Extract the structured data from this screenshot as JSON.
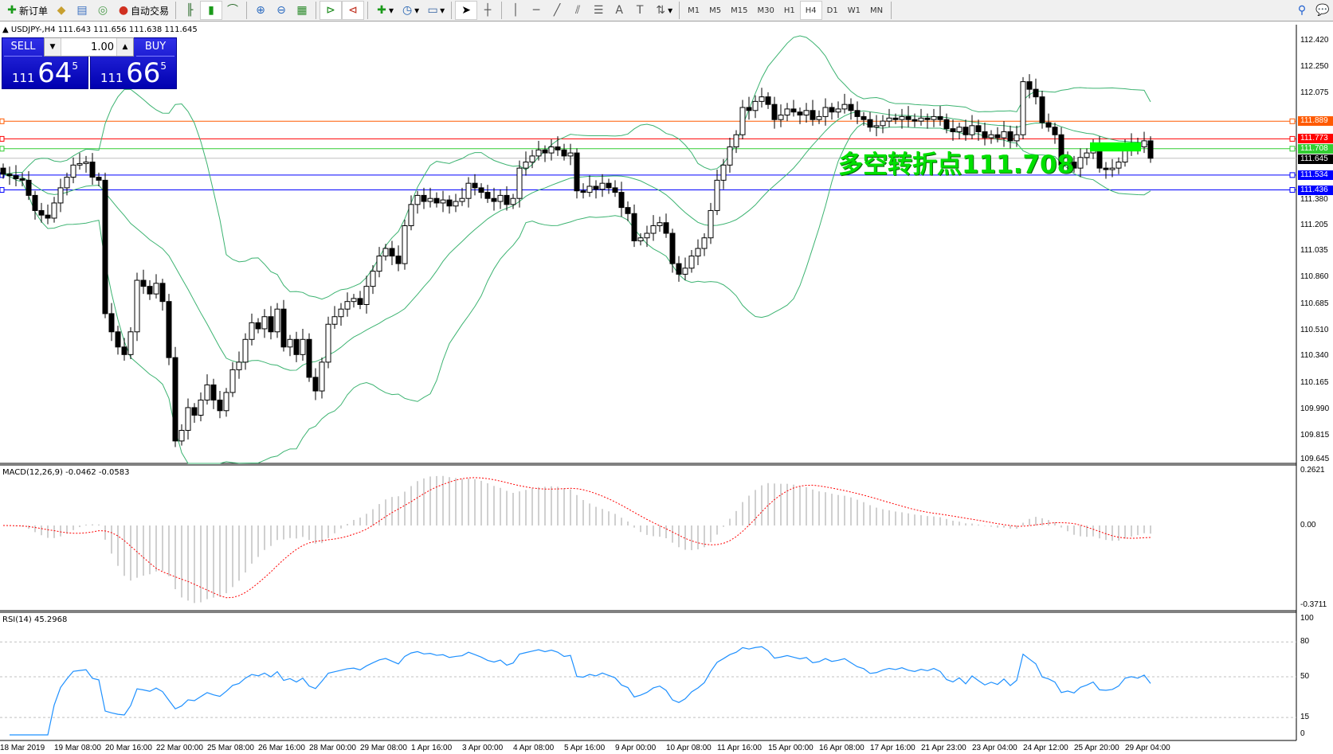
{
  "toolbar": {
    "new_order": "新订单",
    "auto_trading": "自动交易",
    "icons": [
      "new-order-icon",
      "metaeditor-icon",
      "navigator-icon",
      "signal-icon",
      "auto-trading-icon",
      "bar-chart-icon",
      "candlestick-icon",
      "line-chart-icon",
      "zoom-in-icon",
      "zoom-out-icon",
      "tile-windows-icon",
      "autoscroll-icon",
      "chart-shift-icon",
      "indicators-icon",
      "periods-icon",
      "templates-icon",
      "cursor-icon",
      "crosshair-icon",
      "vertical-line-icon",
      "horizontal-line-icon",
      "trendline-icon",
      "equidistant-channel-icon",
      "fibonacci-icon",
      "text-icon",
      "text-label-icon",
      "arrows-icon"
    ],
    "timeframes": [
      "M1",
      "M5",
      "M15",
      "M30",
      "H1",
      "H4",
      "D1",
      "W1",
      "MN"
    ],
    "active_timeframe": "H4"
  },
  "chart_header": "USDJPY-,H4  111.643 111.656 111.638 111.645",
  "trade_panel": {
    "sell_label": "SELL",
    "buy_label": "BUY",
    "lot": "1.00",
    "sell_price": {
      "big": "111",
      "main": "64",
      "sup": "5"
    },
    "buy_price": {
      "big": "111",
      "main": "66",
      "sup": "5"
    }
  },
  "price_levels": [
    {
      "value": "111.889",
      "color": "#ff5a00"
    },
    {
      "value": "111.773",
      "color": "#ff0000"
    },
    {
      "value": "111.708",
      "color": "#32cd32"
    },
    {
      "value": "111.645",
      "color": "#000000",
      "line": "#c0c0c0"
    },
    {
      "value": "111.534",
      "color": "#0000ff"
    },
    {
      "value": "111.436",
      "color": "#0000ff"
    }
  ],
  "annotation": "多空转折点111.708",
  "price_ticks": [
    "112.420",
    "112.250",
    "112.075",
    "111.380",
    "111.205",
    "111.035",
    "110.860",
    "110.685",
    "110.510",
    "110.340",
    "110.165",
    "109.990",
    "109.815",
    "109.645"
  ],
  "macd": {
    "label": "MACD(12,26,9) -0.0462 -0.0583",
    "ticks": [
      "0.2621",
      "0.00",
      "-0.3711"
    ]
  },
  "rsi": {
    "label": "RSI(14) 45.2968",
    "ticks": [
      "100",
      "80",
      "50",
      "15",
      "0"
    ]
  },
  "time_labels": [
    "18 Mar 2019",
    "19 Mar 08:00",
    "20 Mar 16:00",
    "22 Mar 00:00",
    "25 Mar 08:00",
    "26 Mar 16:00",
    "28 Mar 00:00",
    "29 Mar 08:00",
    "1 Apr 16:00",
    "3 Apr 00:00",
    "4 Apr 08:00",
    "5 Apr 16:00",
    "9 Apr 00:00",
    "10 Apr 08:00",
    "11 Apr 16:00",
    "15 Apr 00:00",
    "16 Apr 08:00",
    "17 Apr 16:00",
    "21 Apr 23:00",
    "23 Apr 04:00",
    "24 Apr 12:00",
    "25 Apr 20:00",
    "29 Apr 04:00"
  ],
  "chart_data": {
    "type": "candlestick",
    "symbol": "USDJPY-",
    "timeframe": "H4",
    "ylim": [
      109.645,
      112.42
    ],
    "indicators": [
      "Bollinger Bands",
      "MACD(12,26,9)",
      "RSI(14)"
    ],
    "colors": {
      "bollinger": "#3cb371",
      "macd_hist": "#c0c0c0",
      "macd_signal": "#ff0000",
      "rsi": "#1e90ff"
    },
    "close": [
      111.54,
      111.53,
      111.51,
      111.5,
      111.4,
      111.3,
      111.27,
      111.25,
      111.35,
      111.45,
      111.52,
      111.6,
      111.61,
      111.62,
      111.52,
      111.5,
      110.62,
      110.5,
      110.4,
      110.35,
      110.5,
      110.84,
      110.8,
      110.75,
      110.82,
      110.7,
      110.33,
      109.78,
      109.85,
      110.0,
      109.95,
      110.05,
      110.15,
      110.05,
      109.98,
      110.1,
      110.25,
      110.3,
      110.45,
      110.56,
      110.52,
      110.6,
      110.5,
      110.65,
      110.4,
      110.45,
      110.35,
      110.45,
      110.2,
      110.11,
      110.3,
      110.55,
      110.6,
      110.65,
      110.7,
      110.72,
      110.68,
      110.8,
      110.9,
      111.0,
      111.05,
      111.0,
      110.95,
      111.2,
      111.34,
      111.4,
      111.36,
      111.38,
      111.35,
      111.37,
      111.33,
      111.36,
      111.38,
      111.48,
      111.45,
      111.42,
      111.38,
      111.36,
      111.4,
      111.34,
      111.38,
      111.58,
      111.62,
      111.66,
      111.7,
      111.68,
      111.72,
      111.7,
      111.66,
      111.68,
      111.43,
      111.42,
      111.46,
      111.44,
      111.48,
      111.45,
      111.42,
      111.32,
      111.28,
      111.1,
      111.12,
      111.15,
      111.2,
      111.22,
      111.15,
      110.95,
      110.88,
      110.92,
      111.0,
      111.05,
      111.12,
      111.3,
      111.5,
      111.6,
      111.72,
      111.8,
      111.98,
      111.96,
      112.02,
      112.05,
      112.0,
      111.9,
      111.93,
      111.97,
      111.95,
      111.93,
      111.96,
      111.9,
      111.92,
      111.98,
      111.95,
      111.97,
      112.0,
      111.96,
      111.92,
      111.9,
      111.85,
      111.86,
      111.89,
      111.91,
      111.9,
      111.92,
      111.9,
      111.89,
      111.91,
      111.9,
      111.92,
      111.9,
      111.84,
      111.82,
      111.85,
      111.8,
      111.86,
      111.82,
      111.78,
      111.8,
      111.78,
      111.82,
      111.76,
      111.8,
      112.15,
      112.1,
      112.05,
      111.88,
      111.85,
      111.8,
      111.6,
      111.62,
      111.58,
      111.65,
      111.68,
      111.72,
      111.58,
      111.57,
      111.58,
      111.62,
      111.72,
      111.74,
      111.72,
      111.76,
      111.645
    ]
  }
}
